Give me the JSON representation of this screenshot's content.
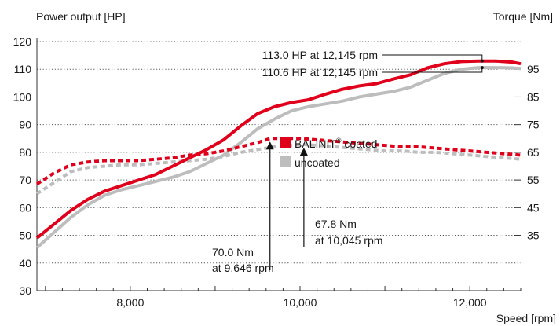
{
  "chart_data": {
    "type": "line",
    "left_axis": {
      "title": "Power output [HP]",
      "ticks": [
        30,
        40,
        50,
        60,
        70,
        80,
        90,
        100,
        110,
        120
      ],
      "range": [
        30,
        120
      ]
    },
    "right_axis": {
      "title": "Torque [Nm]",
      "ticks": [
        35,
        45,
        55,
        65,
        75,
        85,
        95
      ],
      "tick_labels": [
        "35",
        "45",
        "55",
        "65",
        "75",
        "85",
        "95"
      ],
      "range": [
        15,
        105
      ]
    },
    "x_axis": {
      "title": "Speed [rpm]",
      "ticks": [
        8000,
        10000,
        12000
      ],
      "tick_labels": [
        "8,000",
        "10,000",
        "12,000"
      ],
      "range": [
        6900,
        12600
      ]
    },
    "grid": "dotted horizontal",
    "legend": {
      "placement": "center",
      "items": [
        {
          "label_prefix": "BALINIT",
          "label_sup": "®",
          "label_suffix": " coated",
          "color": "#e0001b"
        },
        {
          "label_prefix": "uncoated",
          "label_sup": "",
          "label_suffix": "",
          "color": "#bdbdbd"
        }
      ]
    },
    "series": [
      {
        "name": "BALINIT® coated",
        "kind": "power",
        "axis": "left",
        "style": "solid",
        "color": "#e0001b",
        "x": [
          6900,
          7100,
          7300,
          7500,
          7700,
          7900,
          8100,
          8300,
          8500,
          8700,
          8900,
          9100,
          9300,
          9500,
          9700,
          9900,
          10100,
          10300,
          10500,
          10700,
          10900,
          11100,
          11300,
          11500,
          11700,
          11900,
          12100,
          12300,
          12500,
          12600
        ],
        "y": [
          49,
          54,
          59,
          63,
          66,
          68,
          70,
          72,
          75,
          78,
          81,
          84.5,
          89.5,
          94,
          96.5,
          98,
          99,
          101,
          102.8,
          104,
          104.8,
          106.5,
          108,
          110.5,
          112,
          112.8,
          113,
          113,
          112.6,
          112
        ]
      },
      {
        "name": "uncoated",
        "kind": "power",
        "axis": "left",
        "style": "solid",
        "color": "#bdbdbd",
        "x": [
          6900,
          7100,
          7300,
          7500,
          7700,
          7900,
          8100,
          8300,
          8500,
          8700,
          8900,
          9100,
          9300,
          9500,
          9700,
          9900,
          10100,
          10300,
          10500,
          10700,
          10900,
          11100,
          11300,
          11500,
          11700,
          11900,
          12100,
          12300,
          12500,
          12600
        ],
        "y": [
          45.5,
          51,
          56.5,
          61,
          64.5,
          66.5,
          68,
          69.5,
          71,
          73,
          76,
          79,
          83.5,
          88.5,
          92,
          95,
          96.5,
          97.5,
          98.5,
          100,
          101,
          102,
          103.5,
          106,
          108.5,
          110,
          110.6,
          110.6,
          110.5,
          110.3
        ]
      },
      {
        "name": "BALINIT® coated",
        "kind": "torque",
        "axis": "right",
        "style": "dashed",
        "color": "#e0001b",
        "x": [
          6900,
          7100,
          7300,
          7500,
          7700,
          7900,
          8100,
          8300,
          8500,
          8700,
          8900,
          9100,
          9300,
          9500,
          9646,
          9800,
          10000,
          10200,
          10400,
          10600,
          10800,
          11000,
          11200,
          11400,
          11600,
          11800,
          12000,
          12200,
          12400,
          12600
        ],
        "y": [
          53.5,
          57.5,
          60.5,
          61.5,
          62,
          62,
          62,
          62.5,
          63,
          64,
          64.5,
          65.5,
          67,
          68.5,
          70,
          70,
          70,
          69.5,
          69,
          68.5,
          68,
          67.5,
          67,
          67,
          66.5,
          66,
          65.5,
          65,
          64.5,
          64
        ]
      },
      {
        "name": "uncoated",
        "kind": "torque",
        "axis": "right",
        "style": "dashed",
        "color": "#bdbdbd",
        "x": [
          6900,
          7100,
          7300,
          7500,
          7700,
          7900,
          8100,
          8300,
          8500,
          8700,
          8900,
          9100,
          9300,
          9500,
          9700,
          9900,
          10045,
          10200,
          10400,
          10600,
          10800,
          11000,
          11200,
          11400,
          11600,
          11800,
          12000,
          12200,
          12400,
          12600
        ],
        "y": [
          50,
          54,
          58,
          59.5,
          60,
          60.5,
          60.5,
          61,
          61.5,
          62,
          62.5,
          63.5,
          65,
          66,
          67,
          67.5,
          67.8,
          67.5,
          67,
          66.5,
          66,
          65.5,
          65.5,
          65,
          65,
          64.5,
          64,
          63.5,
          63,
          62.5
        ]
      }
    ],
    "annotations": {
      "power_peaks": [
        {
          "text": "113.0 HP at 12,145 rpm",
          "rpm": 12145,
          "value": 113.0
        },
        {
          "text": "110.6 HP at 12,145 rpm",
          "rpm": 12145,
          "value": 110.6
        }
      ],
      "torque_peaks": [
        {
          "line1": "70.0 Nm",
          "line2": "at 9,646 rpm",
          "rpm": 9646,
          "value": 70.0
        },
        {
          "line1": "67.8 Nm",
          "line2": "at 10,045 rpm",
          "rpm": 10045,
          "value": 67.8
        }
      ]
    }
  }
}
